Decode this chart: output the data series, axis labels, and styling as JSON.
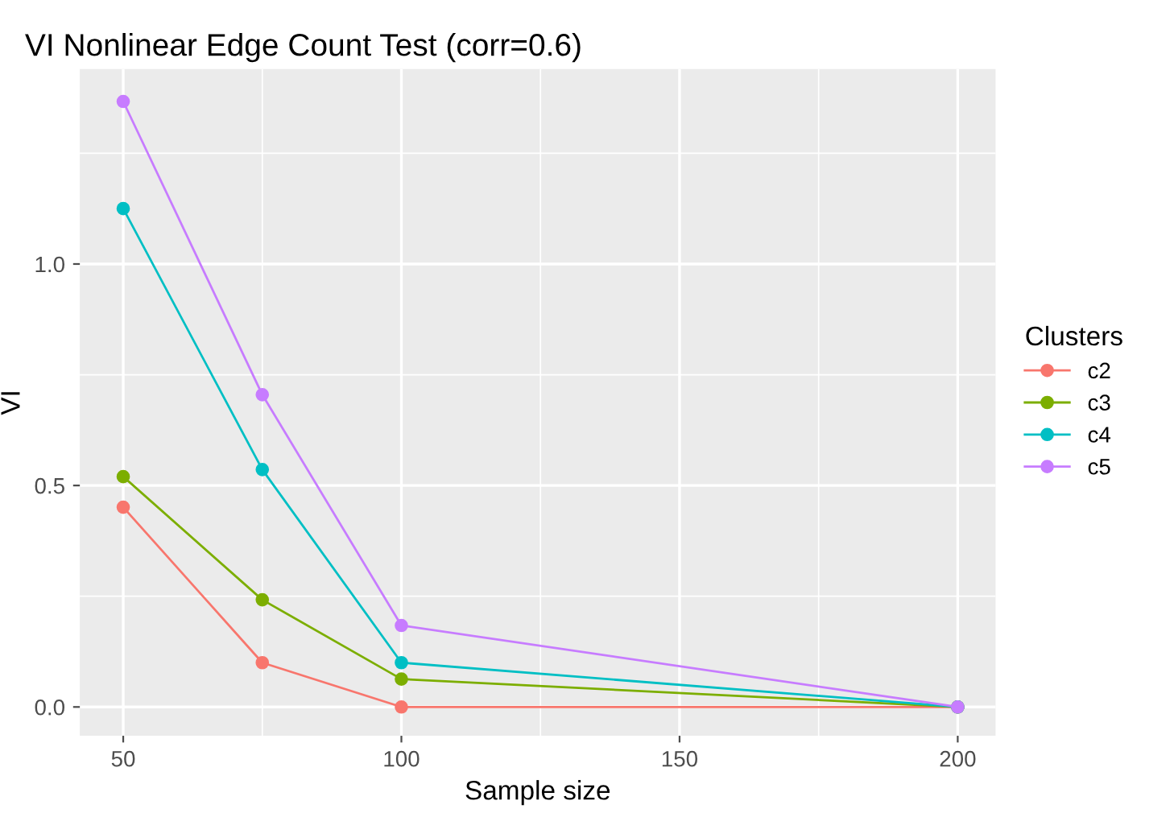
{
  "chart_data": {
    "type": "line",
    "title": "VI Nonlinear Edge Count Test (corr=0.6)",
    "xlabel": "Sample size",
    "ylabel": "VI",
    "legend_title": "Clusters",
    "x": [
      50,
      75,
      100,
      200
    ],
    "series": [
      {
        "name": "c2",
        "color": "#f8766d",
        "values": [
          0.451,
          0.1,
          0.0,
          0.0
        ]
      },
      {
        "name": "c3",
        "color": "#7cae00",
        "values": [
          0.52,
          0.242,
          0.063,
          0.0
        ]
      },
      {
        "name": "c4",
        "color": "#00bfc4",
        "values": [
          1.125,
          0.536,
          0.1,
          0.0
        ]
      },
      {
        "name": "c5",
        "color": "#c77cff",
        "values": [
          1.367,
          0.705,
          0.184,
          0.0
        ]
      }
    ],
    "xlim": [
      42.2,
      206.8
    ],
    "ylim": [
      -0.065,
      1.44
    ],
    "xticks": [
      50,
      100,
      150,
      200
    ],
    "yticks": [
      {
        "value": 0,
        "label": "0.0"
      },
      {
        "value": 0.5,
        "label": "0.5"
      },
      {
        "value": 1,
        "label": "1.0"
      }
    ],
    "grid": true,
    "legend": "right",
    "marker": "circle",
    "line_style": "solid"
  }
}
